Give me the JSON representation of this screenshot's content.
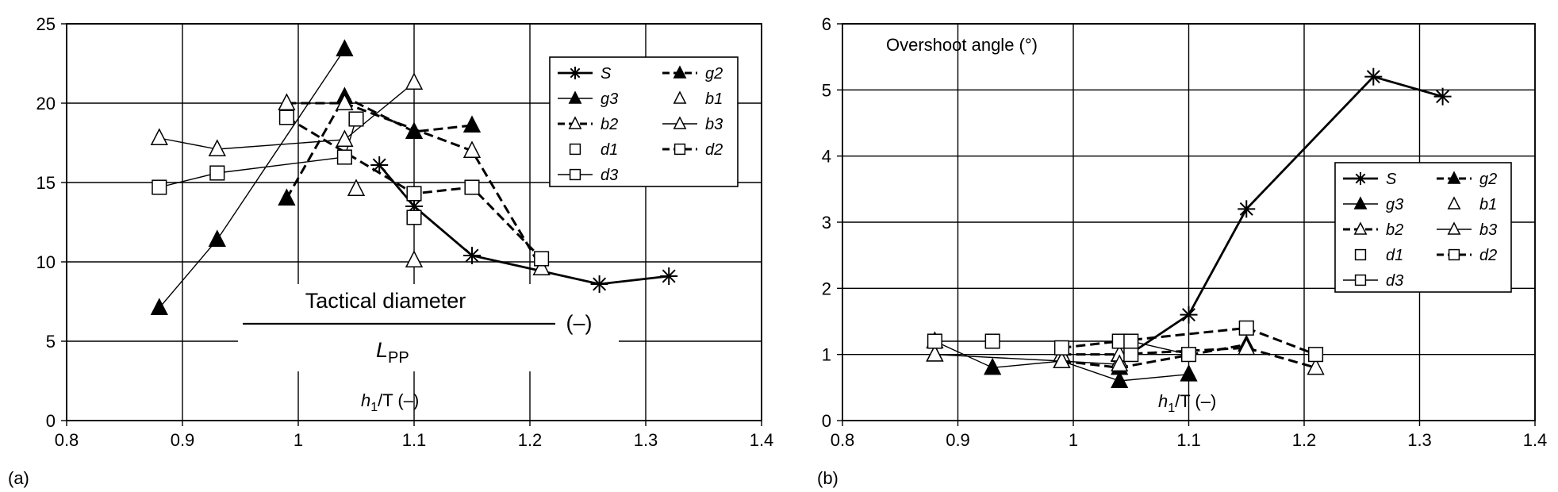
{
  "panels": [
    "(a)",
    "(b)"
  ],
  "chart_data": [
    {
      "type": "line",
      "title": "",
      "annotation": "Tactical diameter",
      "annotation_denominator": "L",
      "annotation_denominator_sub": "PP",
      "annotation_units": "(–)",
      "xlabel_main": "h",
      "xlabel_sub": "1",
      "xlabel_rest": "/T (–)",
      "xlim": [
        0.8,
        1.4
      ],
      "ylim": [
        0,
        25
      ],
      "xticks": [
        "0.8",
        "0.9",
        "1",
        "1.1",
        "1.2",
        "1.3",
        "1.4"
      ],
      "yticks": [
        "0",
        "5",
        "10",
        "15",
        "20",
        "25"
      ],
      "grid": true,
      "legend_position": "top-right",
      "series": [
        {
          "name": "S",
          "x": [
            1.07,
            1.1,
            1.15,
            1.26,
            1.32
          ],
          "y": [
            16.1,
            13.5,
            10.4,
            8.6,
            9.1
          ]
        },
        {
          "name": "g2",
          "x": [
            0.99,
            1.04,
            1.1,
            1.15
          ],
          "y": [
            14.0,
            20.4,
            18.2,
            18.6
          ]
        },
        {
          "name": "g3",
          "x": [
            0.88,
            0.93,
            1.04
          ],
          "y": [
            7.1,
            11.4,
            23.4
          ]
        },
        {
          "name": "b1",
          "x": [
            1.05,
            1.1
          ],
          "y": [
            14.6,
            10.1
          ]
        },
        {
          "name": "b2",
          "x": [
            0.99,
            1.04,
            1.15,
            1.21
          ],
          "y": [
            20.0,
            20.0,
            17.0,
            9.6
          ]
        },
        {
          "name": "b3",
          "x": [
            0.88,
            0.93,
            1.04,
            1.1
          ],
          "y": [
            17.8,
            17.1,
            17.7,
            21.3
          ]
        },
        {
          "name": "d1",
          "x": [
            1.1
          ],
          "y": [
            12.8
          ]
        },
        {
          "name": "d2",
          "x": [
            0.99,
            1.1,
            1.15,
            1.21
          ],
          "y": [
            19.1,
            14.3,
            14.7,
            10.2
          ]
        },
        {
          "name": "d3",
          "x": [
            0.88,
            0.93,
            1.04,
            1.05
          ],
          "y": [
            14.7,
            15.6,
            16.6,
            19.0
          ]
        }
      ]
    },
    {
      "type": "line",
      "title": "Overshoot angle (°)",
      "xlabel_main": "h",
      "xlabel_sub": "1",
      "xlabel_rest": "/T (–)",
      "xlim": [
        0.8,
        1.4
      ],
      "ylim": [
        0,
        6
      ],
      "xticks": [
        "0.8",
        "0.9",
        "1",
        "1.1",
        "1.2",
        "1.3",
        "1.4"
      ],
      "yticks": [
        "0",
        "1",
        "2",
        "3",
        "4",
        "5",
        "6"
      ],
      "grid": true,
      "legend_position": "right-middle",
      "series": [
        {
          "name": "S",
          "x": [
            1.04,
            1.1,
            1.15,
            1.26,
            1.32
          ],
          "y": [
            0.9,
            1.6,
            3.2,
            5.2,
            4.9
          ]
        },
        {
          "name": "g2",
          "x": [
            0.99,
            1.04,
            1.15
          ],
          "y": [
            0.9,
            0.8,
            1.15
          ]
        },
        {
          "name": "g3",
          "x": [
            0.88,
            0.93,
            0.99,
            1.04,
            1.1
          ],
          "y": [
            1.2,
            0.8,
            0.9,
            0.6,
            0.7
          ]
        },
        {
          "name": "b1",
          "x": [
            0.88,
            1.04
          ],
          "y": [
            1.0,
            0.9
          ]
        },
        {
          "name": "b2",
          "x": [
            0.99,
            1.04,
            1.15,
            1.21
          ],
          "y": [
            1.0,
            1.0,
            1.1,
            0.8
          ]
        },
        {
          "name": "b3",
          "x": [
            0.88,
            0.99,
            1.04
          ],
          "y": [
            1.0,
            0.9,
            0.85
          ]
        },
        {
          "name": "d1",
          "x": [
            1.05
          ],
          "y": [
            1.0
          ]
        },
        {
          "name": "d2",
          "x": [
            0.99,
            1.04,
            1.15,
            1.21
          ],
          "y": [
            1.1,
            1.2,
            1.4,
            1.0
          ]
        },
        {
          "name": "d3",
          "x": [
            0.88,
            0.93,
            1.05,
            1.1
          ],
          "y": [
            1.2,
            1.2,
            1.2,
            1.0
          ]
        }
      ]
    }
  ]
}
